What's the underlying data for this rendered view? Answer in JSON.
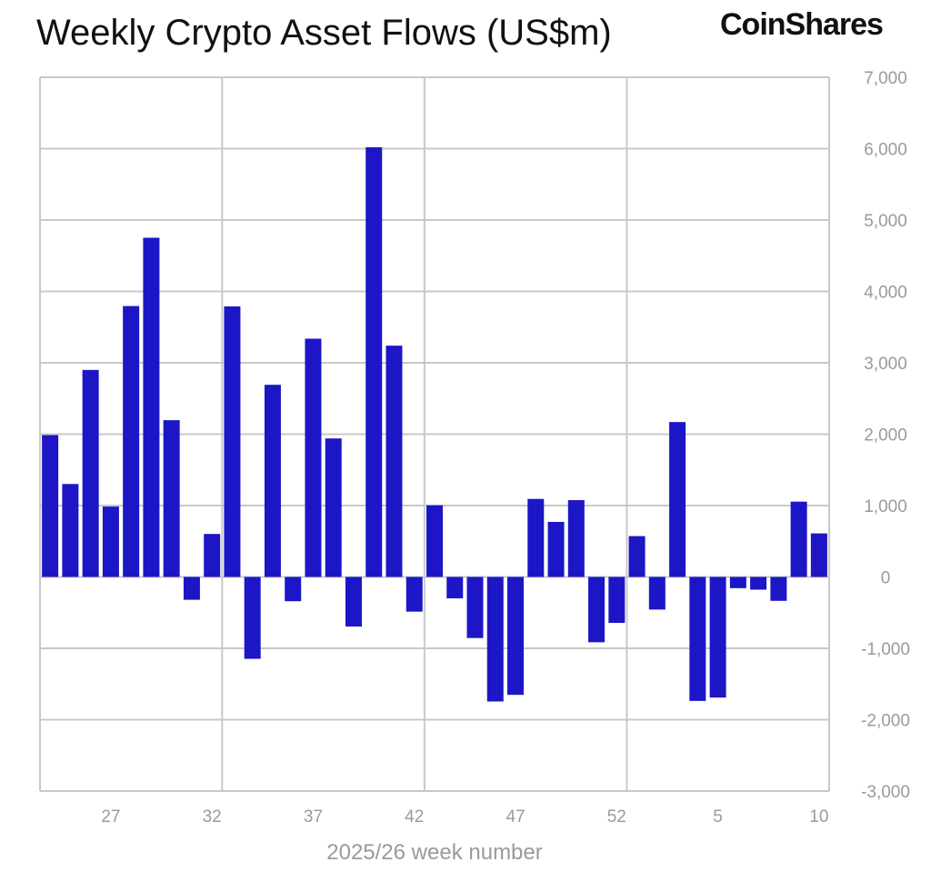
{
  "chart_data": {
    "type": "bar",
    "title": "Weekly Crypto Asset Flows (US$m)",
    "brand": "CoinShares",
    "xlabel": "2025/26 week number",
    "ylabel": "",
    "ylim": [
      -3000,
      7000
    ],
    "yticks": [
      7000,
      6000,
      5000,
      4000,
      3000,
      2000,
      1000,
      0,
      -1000,
      -2000,
      -3000
    ],
    "ytick_labels": [
      "7,000",
      "6,000",
      "5,000",
      "4,000",
      "3,000",
      "2,000",
      "1,000",
      "0",
      "-1,000",
      "-2,000",
      "-3,000"
    ],
    "y_axis_position": "right",
    "grid": true,
    "bar_color": "#1c16c6",
    "categories": [
      24,
      25,
      26,
      27,
      28,
      29,
      30,
      31,
      32,
      33,
      34,
      35,
      36,
      37,
      38,
      39,
      40,
      41,
      42,
      43,
      44,
      45,
      46,
      47,
      48,
      49,
      50,
      51,
      52,
      1,
      2,
      3,
      4,
      5,
      6,
      7,
      8,
      9,
      10
    ],
    "xtick_labels": [
      "27",
      "32",
      "37",
      "42",
      "47",
      "52",
      "5",
      "10"
    ],
    "values": [
      1987,
      1302,
      2900,
      986,
      3795,
      4752,
      2196,
      -320,
      602,
      3790,
      -1147,
      2692,
      -340,
      3338,
      1940,
      -695,
      6020,
      3240,
      -486,
      1004,
      -300,
      -856,
      -1745,
      -1652,
      1093,
      771,
      1076,
      -915,
      -644,
      572,
      -457,
      2170,
      -1737,
      -1690,
      -157,
      -178,
      -335,
      1055,
      610
    ]
  }
}
